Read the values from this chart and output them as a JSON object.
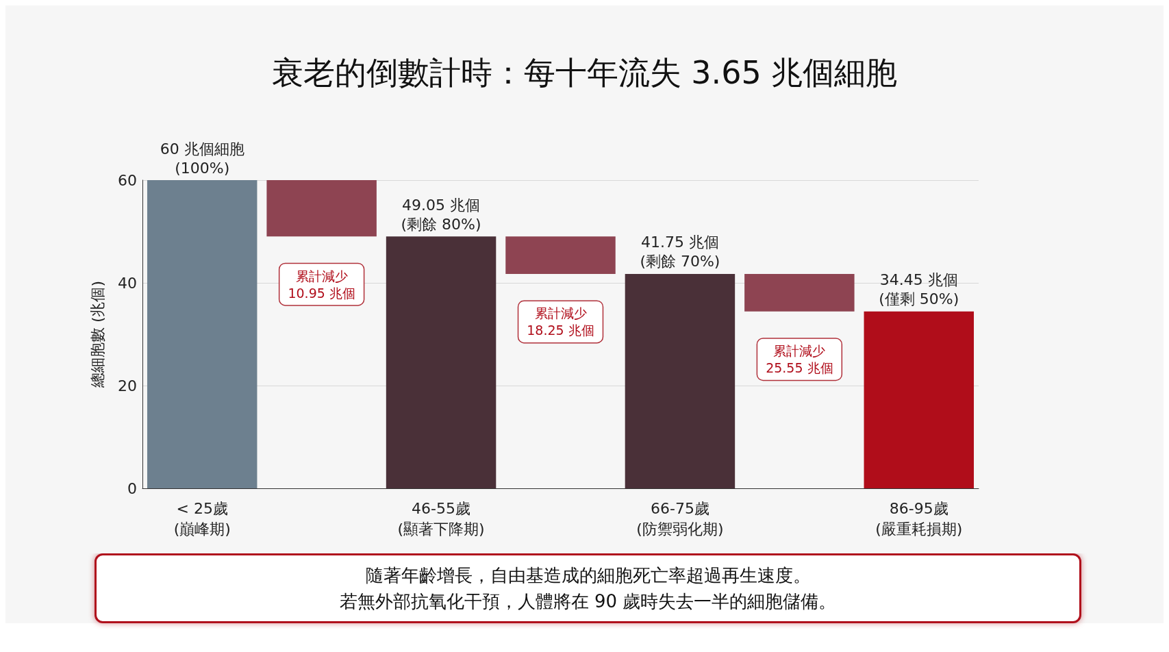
{
  "chart_data": {
    "type": "bar",
    "title": "衰老的倒數計時：每十年流失 3.65 兆個細胞",
    "ylabel": "總細胞數 (兆個)",
    "categories": [
      "< 25歲\n(巔峰期)",
      null,
      "46-55歲\n(顯著下降期)",
      null,
      "66-75歲\n(防禦弱化期)",
      null,
      "86-95歲\n(嚴重耗損期)"
    ],
    "values": [
      60,
      10.95,
      49.05,
      7.3,
      41.75,
      7.3,
      34.45
    ],
    "base": [
      0,
      49.05,
      0,
      41.75,
      0,
      34.45,
      0
    ],
    "colors": [
      "#6d808f",
      "#8e4452",
      "#4a3038",
      "#8e4452",
      "#4a3038",
      "#8e4452",
      "#b00d1a"
    ],
    "value_labels": [
      "60 兆個細胞\n(100%)",
      null,
      "49.05 兆個\n(剩餘 80%)",
      null,
      "41.75 兆個\n(剩餘 70%)",
      null,
      "34.45 兆個\n(僅剩 50%)"
    ],
    "annotations": [
      "累計減少\n10.95 兆個",
      "累計減少\n18.25 兆個",
      "累計減少\n25.55 兆個",
      "隨著年齡增長，自由基造成的細胞死亡率超過再生速度。",
      "若無外部抗氧化干預，人體將在 90 歲時失去一半的細胞儲備。"
    ],
    "ylim": [
      0,
      60
    ],
    "yticks": [
      0,
      20,
      40,
      60
    ],
    "grid": "y"
  }
}
